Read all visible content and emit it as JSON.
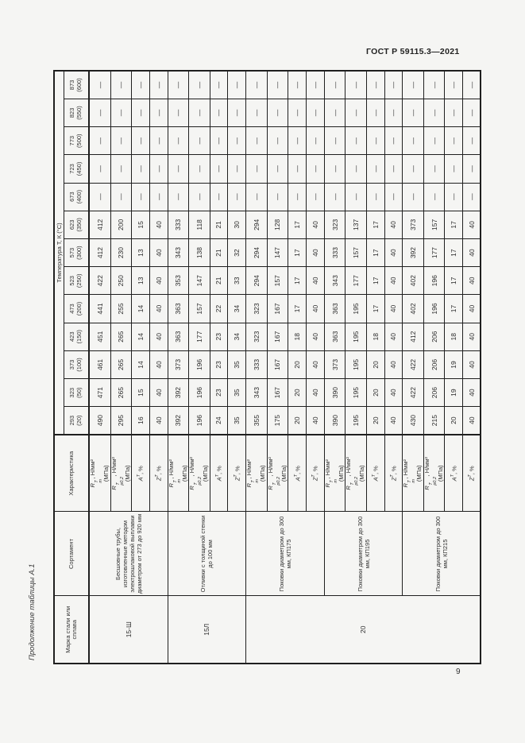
{
  "page": {
    "doc_header": "ГОСТ Р 59115.3—2021",
    "table_caption": "Продолжение таблицы А.1",
    "page_number": "9"
  },
  "table": {
    "headers": {
      "marka": "Марка стали или сплава",
      "sortament": "Сортамент",
      "characteristic": "Характеристика",
      "temperature": "Температура Т, К (°С)",
      "temp_columns": [
        "293 (20)",
        "323 (50)",
        "373 (100)",
        "423 (150)",
        "473 (200)",
        "523 (250)",
        "573 (300)",
        "623 (350)",
        "673 (400)",
        "723 (450)",
        "773 (500)",
        "823 (550)",
        "873 (600)"
      ]
    },
    "char_defs": {
      "rm": {
        "sym": "R",
        "sup": "T",
        "sub": "m",
        "tail": ", Н/мм²",
        "tail2": "(МПа)"
      },
      "rp02": {
        "sym": "R",
        "sup": "T",
        "sub": "p0,2",
        "tail": ", Н/мм²",
        "tail2": "(МПа)"
      },
      "a": {
        "sym": "A",
        "sup": "T",
        "tail": ", %"
      },
      "z": {
        "sym": "Z",
        "sup": "T",
        "tail": ", %"
      }
    },
    "no_data": "—",
    "grades": [
      {
        "marka": "15-Ш",
        "sortaments": [
          {
            "name": "Бесшовные трубы, изготовленные методом электрошлаковой выплавки диаметром от 273 до 920 мм",
            "rows": [
              {
                "char": "rm",
                "values": [
                  "490",
                  "471",
                  "461",
                  "451",
                  "441",
                  "422",
                  "412",
                  "412",
                  "—",
                  "—",
                  "—",
                  "—",
                  "—"
                ]
              },
              {
                "char": "rp02",
                "values": [
                  "295",
                  "265",
                  "265",
                  "265",
                  "255",
                  "250",
                  "230",
                  "200",
                  "—",
                  "—",
                  "—",
                  "—",
                  "—"
                ]
              },
              {
                "char": "a",
                "values": [
                  "16",
                  "15",
                  "14",
                  "14",
                  "14",
                  "13",
                  "13",
                  "15",
                  "—",
                  "—",
                  "—",
                  "—",
                  "—"
                ]
              },
              {
                "char": "z",
                "values": [
                  "40",
                  "40",
                  "40",
                  "40",
                  "40",
                  "40",
                  "40",
                  "40",
                  "—",
                  "—",
                  "—",
                  "—",
                  "—"
                ]
              }
            ]
          }
        ]
      },
      {
        "marka": "15Л",
        "sortaments": [
          {
            "name": "Отливки с толщиной стенки до 100 мм",
            "rows": [
              {
                "char": "rm",
                "values": [
                  "392",
                  "392",
                  "373",
                  "363",
                  "363",
                  "353",
                  "343",
                  "333",
                  "—",
                  "—",
                  "—",
                  "—",
                  "—"
                ]
              },
              {
                "char": "rp02",
                "values": [
                  "196",
                  "196",
                  "196",
                  "177",
                  "157",
                  "147",
                  "138",
                  "118",
                  "—",
                  "—",
                  "—",
                  "—",
                  "—"
                ]
              },
              {
                "char": "a",
                "values": [
                  "24",
                  "23",
                  "23",
                  "23",
                  "22",
                  "21",
                  "21",
                  "21",
                  "—",
                  "—",
                  "—",
                  "—",
                  "—"
                ]
              },
              {
                "char": "z",
                "values": [
                  "35",
                  "35",
                  "35",
                  "34",
                  "34",
                  "33",
                  "32",
                  "30",
                  "—",
                  "—",
                  "—",
                  "—",
                  "—"
                ]
              }
            ]
          }
        ]
      },
      {
        "marka": "20",
        "sortaments": [
          {
            "name": "Поковки диаметром до 300 мм, КП175",
            "rows": [
              {
                "char": "rm",
                "values": [
                  "355",
                  "343",
                  "333",
                  "323",
                  "323",
                  "294",
                  "294",
                  "294",
                  "—",
                  "—",
                  "—",
                  "—",
                  "—"
                ]
              },
              {
                "char": "rp02",
                "values": [
                  "175",
                  "167",
                  "167",
                  "167",
                  "167",
                  "157",
                  "147",
                  "128",
                  "—",
                  "—",
                  "—",
                  "—",
                  "—"
                ]
              },
              {
                "char": "a",
                "values": [
                  "20",
                  "20",
                  "20",
                  "18",
                  "17",
                  "17",
                  "17",
                  "17",
                  "—",
                  "—",
                  "—",
                  "—",
                  "—"
                ]
              },
              {
                "char": "z",
                "values": [
                  "40",
                  "40",
                  "40",
                  "40",
                  "40",
                  "40",
                  "40",
                  "40",
                  "—",
                  "—",
                  "—",
                  "—",
                  "—"
                ]
              }
            ]
          },
          {
            "name": "Поковки диаметром до 300 мм, КП195",
            "rows": [
              {
                "char": "rm",
                "values": [
                  "390",
                  "390",
                  "373",
                  "363",
                  "363",
                  "343",
                  "333",
                  "323",
                  "—",
                  "—",
                  "—",
                  "—",
                  "—"
                ]
              },
              {
                "char": "rp02",
                "values": [
                  "195",
                  "195",
                  "195",
                  "195",
                  "195",
                  "177",
                  "157",
                  "137",
                  "—",
                  "—",
                  "—",
                  "—",
                  "—"
                ]
              },
              {
                "char": "a",
                "values": [
                  "20",
                  "20",
                  "20",
                  "18",
                  "17",
                  "17",
                  "17",
                  "17",
                  "—",
                  "—",
                  "—",
                  "—",
                  "—"
                ]
              },
              {
                "char": "z",
                "values": [
                  "40",
                  "40",
                  "40",
                  "40",
                  "40",
                  "40",
                  "40",
                  "40",
                  "—",
                  "—",
                  "—",
                  "—",
                  "—"
                ]
              }
            ]
          },
          {
            "name": "Поковки диаметром до 300 мм, КП215",
            "rows": [
              {
                "char": "rm",
                "values": [
                  "430",
                  "422",
                  "422",
                  "412",
                  "402",
                  "402",
                  "392",
                  "373",
                  "—",
                  "—",
                  "—",
                  "—",
                  "—"
                ]
              },
              {
                "char": "rp02",
                "values": [
                  "215",
                  "206",
                  "206",
                  "206",
                  "196",
                  "196",
                  "177",
                  "157",
                  "—",
                  "—",
                  "—",
                  "—",
                  "—"
                ]
              },
              {
                "char": "a",
                "values": [
                  "20",
                  "19",
                  "19",
                  "18",
                  "17",
                  "17",
                  "17",
                  "17",
                  "—",
                  "—",
                  "—",
                  "—",
                  "—"
                ]
              },
              {
                "char": "z",
                "values": [
                  "40",
                  "40",
                  "40",
                  "40",
                  "40",
                  "40",
                  "40",
                  "40",
                  "—",
                  "—",
                  "—",
                  "—",
                  "—"
                ]
              }
            ]
          }
        ]
      }
    ]
  }
}
